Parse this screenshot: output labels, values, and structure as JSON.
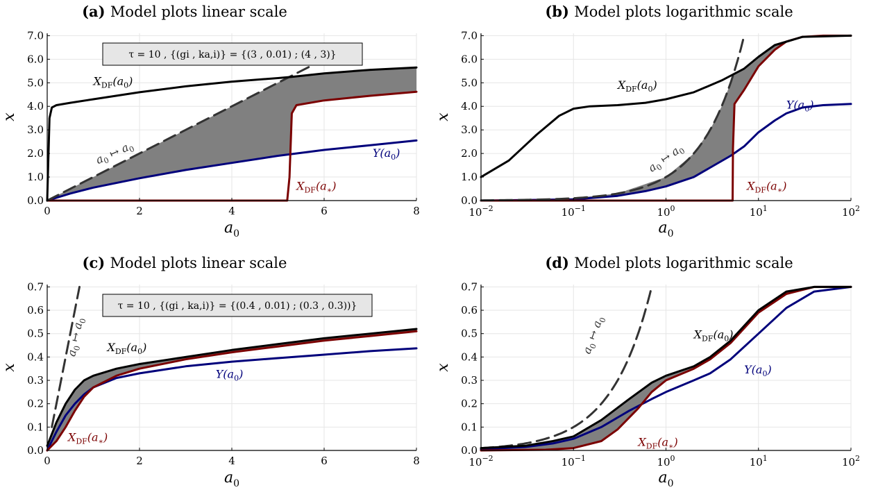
{
  "colors": {
    "x_df_a0": "#000000",
    "x_df_astar": "#7b0000",
    "y_a0": "#00007b",
    "identity": "#333333",
    "fill": "#808080",
    "box_bg": "#e6e6e6"
  },
  "chart_data": [
    {
      "type": "line",
      "title_prefix": "(a)",
      "title": "Model plots linear scale",
      "xlabel": "a0",
      "ylabel": "x",
      "xscale": "linear",
      "xlim": [
        0,
        8
      ],
      "ylim": [
        0,
        7.1
      ],
      "xticks": [
        0,
        2,
        4,
        6,
        8
      ],
      "xtick_labels": [
        "0",
        "2",
        "4",
        "6",
        "8"
      ],
      "yticks": [
        0,
        1,
        2,
        3,
        4,
        5,
        6,
        7
      ],
      "ytick_labels": [
        "0.0",
        "1.0",
        "2.0",
        "3.0",
        "4.0",
        "5.0",
        "6.0",
        "7.0"
      ],
      "annotation": "τ = 10 ,   {(gi , ka,i)} = {(3 , 0.01) ; (4 , 3)}",
      "series": [
        {
          "name": "X_DF(a0)",
          "color": "#000000",
          "x": [
            0,
            0.05,
            0.1,
            0.2,
            0.5,
            1,
            2,
            3,
            4,
            5,
            5.3,
            6,
            7,
            8
          ],
          "y": [
            0,
            3.5,
            3.95,
            4.05,
            4.15,
            4.3,
            4.6,
            4.85,
            5.05,
            5.2,
            5.25,
            5.4,
            5.55,
            5.65
          ]
        },
        {
          "name": "X_DF(a*)",
          "color": "#7b0000",
          "x": [
            0,
            5.2,
            5.25,
            5.3,
            5.4,
            6,
            7,
            8
          ],
          "y": [
            0,
            0,
            1.0,
            3.7,
            4.05,
            4.25,
            4.45,
            4.62
          ]
        },
        {
          "name": "Y(a0)",
          "color": "#00007b",
          "x": [
            0,
            0.5,
            1,
            2,
            3,
            4,
            5,
            6,
            7,
            8
          ],
          "y": [
            0,
            0.3,
            0.55,
            0.95,
            1.3,
            1.6,
            1.9,
            2.15,
            2.35,
            2.55
          ]
        },
        {
          "name": "a0 ↦ a0",
          "color": "#333333",
          "dashed": true,
          "x": [
            0,
            6.0
          ],
          "y": [
            0,
            6.0
          ]
        }
      ],
      "labels": [
        {
          "text": "XDF(a0)",
          "x": 1.0,
          "y": 4.9,
          "color": "#000000"
        },
        {
          "text": "XDF(a*)",
          "x": 5.4,
          "y": 0.45,
          "color": "#7b0000"
        },
        {
          "text": "Y(a0)",
          "x": 7.05,
          "y": 1.85,
          "color": "#00007b"
        },
        {
          "text": "a0 ↦ a0",
          "x": 1.1,
          "y": 1.55,
          "color": "#333333",
          "rotate": -24
        }
      ]
    },
    {
      "type": "line",
      "title_prefix": "(b)",
      "title": "Model plots logarithmic scale",
      "xlabel": "a0",
      "ylabel": "x",
      "xscale": "log",
      "xlim": [
        0.01,
        100
      ],
      "ylim": [
        0,
        7.1
      ],
      "xticks": [
        0.01,
        0.1,
        1,
        10,
        100
      ],
      "xtick_labels": [
        "10−2",
        "10−1",
        "100",
        "101",
        "102"
      ],
      "yticks": [
        0,
        1,
        2,
        3,
        4,
        5,
        6,
        7
      ],
      "ytick_labels": [
        "0.0",
        "1.0",
        "2.0",
        "3.0",
        "4.0",
        "5.0",
        "6.0",
        "7.0"
      ],
      "series": [
        {
          "name": "X_DF(a0)",
          "color": "#000000",
          "x": [
            0.01,
            0.02,
            0.04,
            0.07,
            0.1,
            0.15,
            0.3,
            0.6,
            1,
            2,
            4,
            7,
            10,
            15,
            30,
            100
          ],
          "y": [
            1.0,
            1.7,
            2.8,
            3.6,
            3.9,
            4.0,
            4.05,
            4.15,
            4.3,
            4.6,
            5.1,
            5.6,
            6.1,
            6.6,
            6.95,
            7.0
          ]
        },
        {
          "name": "X_DF(a*)",
          "color": "#7b0000",
          "x": [
            0.01,
            5.25,
            5.3,
            5.5,
            7,
            10,
            15,
            20,
            30,
            50,
            100
          ],
          "y": [
            0,
            0,
            2.2,
            4.1,
            4.7,
            5.7,
            6.4,
            6.75,
            6.95,
            7.0,
            7.0
          ]
        },
        {
          "name": "Y(a0)",
          "color": "#00007b",
          "x": [
            0.01,
            0.1,
            0.3,
            0.6,
            1,
            2,
            3,
            5,
            7,
            10,
            15,
            20,
            30,
            50,
            100
          ],
          "y": [
            0,
            0.05,
            0.2,
            0.4,
            0.6,
            1.0,
            1.4,
            1.9,
            2.3,
            2.9,
            3.4,
            3.7,
            3.95,
            4.05,
            4.1
          ]
        },
        {
          "name": "a0 ↦ a0",
          "color": "#333333",
          "dashed": true,
          "x": [
            0.01,
            0.1,
            0.3,
            1,
            2,
            3,
            4,
            5,
            6,
            7
          ],
          "y": [
            0.01,
            0.1,
            0.3,
            1,
            2,
            3,
            4,
            5,
            6,
            7
          ]
        }
      ],
      "labels": [
        {
          "text": "XDF(a0)",
          "x": 0.3,
          "y": 4.75,
          "color": "#000000"
        },
        {
          "text": "XDF(a*)",
          "x": 7.5,
          "y": 0.45,
          "color": "#7b0000"
        },
        {
          "text": "Y(a0)",
          "x": 20,
          "y": 3.9,
          "color": "#00007b"
        },
        {
          "text": "a0 ↦ a0",
          "x": 0.7,
          "y": 1.2,
          "color": "#333333",
          "rotate": -35
        }
      ]
    },
    {
      "type": "line",
      "title_prefix": "(c)",
      "title": "Model plots linear scale",
      "xlabel": "a0",
      "ylabel": "x",
      "xscale": "linear",
      "xlim": [
        0,
        8
      ],
      "ylim": [
        0,
        0.71
      ],
      "xticks": [
        0,
        2,
        4,
        6,
        8
      ],
      "xtick_labels": [
        "0",
        "2",
        "4",
        "6",
        "8"
      ],
      "yticks": [
        0,
        0.1,
        0.2,
        0.3,
        0.4,
        0.5,
        0.6,
        0.7
      ],
      "ytick_labels": [
        "0.0",
        "0.1",
        "0.2",
        "0.3",
        "0.4",
        "0.5",
        "0.6",
        "0.7"
      ],
      "annotation": "τ = 10 ,   {(gi , ka,i)} = {(0.4 , 0.01) ; (0.3 , 0.3))}",
      "series": [
        {
          "name": "X_DF(a0)",
          "color": "#000000",
          "x": [
            0,
            0.1,
            0.2,
            0.4,
            0.6,
            0.8,
            1,
            1.5,
            2,
            3,
            4,
            5,
            6,
            7,
            8
          ],
          "y": [
            0.02,
            0.07,
            0.12,
            0.2,
            0.26,
            0.3,
            0.32,
            0.35,
            0.37,
            0.4,
            0.43,
            0.455,
            0.48,
            0.5,
            0.52
          ]
        },
        {
          "name": "X_DF(a*)",
          "color": "#7b0000",
          "x": [
            0,
            0.2,
            0.4,
            0.6,
            0.8,
            1,
            1.5,
            2,
            3,
            4,
            5,
            6,
            7,
            8
          ],
          "y": [
            0,
            0.04,
            0.1,
            0.17,
            0.23,
            0.27,
            0.32,
            0.35,
            0.39,
            0.42,
            0.445,
            0.47,
            0.49,
            0.51
          ]
        },
        {
          "name": "Y(a0)",
          "color": "#00007b",
          "x": [
            0,
            0.2,
            0.4,
            0.6,
            0.8,
            1,
            1.5,
            2,
            3,
            4,
            5,
            6,
            7,
            8
          ],
          "y": [
            0,
            0.08,
            0.15,
            0.2,
            0.24,
            0.27,
            0.31,
            0.33,
            0.36,
            0.38,
            0.395,
            0.41,
            0.425,
            0.437
          ]
        },
        {
          "name": "a0 ↦ a0",
          "color": "#333333",
          "dashed": true,
          "x": [
            0.1,
            0.7
          ],
          "y": [
            0.1,
            0.7
          ]
        }
      ],
      "labels": [
        {
          "text": "XDF(a0)",
          "x": 1.3,
          "y": 0.425,
          "color": "#000000"
        },
        {
          "text": "XDF(a*)",
          "x": 0.45,
          "y": 0.04,
          "color": "#7b0000"
        },
        {
          "text": "Y(a0)",
          "x": 3.65,
          "y": 0.31,
          "color": "#00007b"
        },
        {
          "text": "a0 ↦ a0",
          "x": 0.6,
          "y": 0.4,
          "color": "#333333",
          "rotate": -78
        }
      ]
    },
    {
      "type": "line",
      "title_prefix": "(d)",
      "title": "Model plots logarithmic scale",
      "xlabel": "a0",
      "ylabel": "x",
      "xscale": "log",
      "xlim": [
        0.01,
        100
      ],
      "ylim": [
        0,
        0.71
      ],
      "xticks": [
        0.01,
        0.1,
        1,
        10,
        100
      ],
      "xtick_labels": [
        "10−2",
        "10−1",
        "100",
        "101",
        "102"
      ],
      "yticks": [
        0,
        0.1,
        0.2,
        0.3,
        0.4,
        0.5,
        0.6,
        0.7
      ],
      "ytick_labels": [
        "0.0",
        "0.1",
        "0.2",
        "0.3",
        "0.4",
        "0.5",
        "0.6",
        "0.7"
      ],
      "series": [
        {
          "name": "X_DF(a0)",
          "color": "#000000",
          "x": [
            0.01,
            0.03,
            0.06,
            0.1,
            0.2,
            0.4,
            0.7,
            1,
            2,
            3,
            5,
            10,
            20,
            40,
            100
          ],
          "y": [
            0.01,
            0.02,
            0.04,
            0.06,
            0.13,
            0.22,
            0.29,
            0.32,
            0.36,
            0.4,
            0.47,
            0.6,
            0.68,
            0.7,
            0.7
          ]
        },
        {
          "name": "X_DF(a*)",
          "color": "#7b0000",
          "x": [
            0.01,
            0.05,
            0.1,
            0.2,
            0.3,
            0.5,
            0.7,
            1,
            2,
            3,
            5,
            10,
            20,
            40,
            100
          ],
          "y": [
            0,
            0.003,
            0.01,
            0.04,
            0.09,
            0.18,
            0.25,
            0.3,
            0.35,
            0.39,
            0.46,
            0.59,
            0.67,
            0.7,
            0.7
          ]
        },
        {
          "name": "Y(a0)",
          "color": "#00007b",
          "x": [
            0.01,
            0.03,
            0.06,
            0.1,
            0.2,
            0.4,
            0.7,
            1,
            2,
            3,
            5,
            10,
            20,
            40,
            100
          ],
          "y": [
            0.005,
            0.015,
            0.03,
            0.05,
            0.1,
            0.17,
            0.22,
            0.25,
            0.3,
            0.33,
            0.39,
            0.5,
            0.61,
            0.68,
            0.7
          ]
        },
        {
          "name": "a0 ↦ a0",
          "color": "#333333",
          "dashed": true,
          "x": [
            0.01,
            0.1,
            0.2,
            0.3,
            0.4,
            0.5,
            0.6,
            0.7
          ],
          "y": [
            0.01,
            0.1,
            0.2,
            0.3,
            0.4,
            0.5,
            0.6,
            0.7
          ]
        }
      ],
      "labels": [
        {
          "text": "XDF(a0)",
          "x": 2.0,
          "y": 0.48,
          "color": "#000000"
        },
        {
          "text": "XDF(a*)",
          "x": 0.5,
          "y": 0.02,
          "color": "#7b0000"
        },
        {
          "text": "Y(a0)",
          "x": 7.0,
          "y": 0.33,
          "color": "#00007b"
        },
        {
          "text": "a0 ↦ a0",
          "x": 0.15,
          "y": 0.41,
          "color": "#333333",
          "rotate": -70
        }
      ]
    }
  ]
}
